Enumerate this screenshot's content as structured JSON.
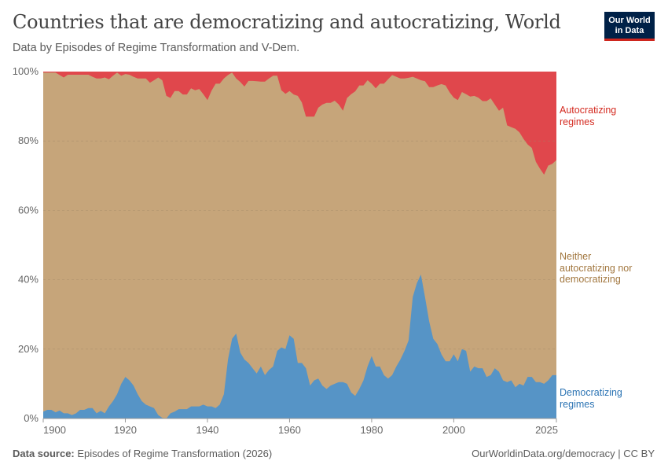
{
  "header": {
    "title": "Countries that are democratizing and autocratizing, World",
    "subtitle": "Data by Episodes of Regime Transformation and V-Dem."
  },
  "logo": {
    "line1": "Our World",
    "line2": "in Data"
  },
  "footer": {
    "source_label": "Data source:",
    "source": "Episodes of Regime Transformation (2026)",
    "link": "OurWorldinData.org/democracy | CC BY"
  },
  "colors": {
    "autocratizing": "#e0474c",
    "neither": "#c6a57a",
    "democratizing": "#5694c6",
    "autocratizing_label": "#d42b21",
    "neither_label": "#a2773f",
    "democratizing_label": "#2c74b4"
  },
  "chart_data": {
    "type": "area",
    "stacked": true,
    "title": "Countries that are democratizing and autocratizing, World",
    "ylim": [
      0,
      100
    ],
    "xlim": [
      1900,
      2025
    ],
    "grid": "horizontal dashed",
    "legend": "right, inline labels",
    "y_ticks": [
      "0%",
      "20%",
      "40%",
      "60%",
      "80%",
      "100%"
    ],
    "x_ticks": [
      "1900",
      "1920",
      "1940",
      "1960",
      "1980",
      "2000",
      "2025"
    ],
    "x_tick_values": [
      1900,
      1920,
      1940,
      1960,
      1980,
      2000,
      2025
    ],
    "years": [
      1900,
      1901,
      1902,
      1903,
      1904,
      1905,
      1906,
      1907,
      1908,
      1909,
      1910,
      1911,
      1912,
      1913,
      1914,
      1915,
      1916,
      1917,
      1918,
      1919,
      1920,
      1921,
      1922,
      1923,
      1924,
      1925,
      1926,
      1927,
      1928,
      1929,
      1930,
      1931,
      1932,
      1933,
      1934,
      1935,
      1936,
      1937,
      1938,
      1939,
      1940,
      1941,
      1942,
      1943,
      1944,
      1945,
      1946,
      1947,
      1948,
      1949,
      1950,
      1951,
      1952,
      1953,
      1954,
      1955,
      1956,
      1957,
      1958,
      1959,
      1960,
      1961,
      1962,
      1963,
      1964,
      1965,
      1966,
      1967,
      1968,
      1969,
      1970,
      1971,
      1972,
      1973,
      1974,
      1975,
      1976,
      1977,
      1978,
      1979,
      1980,
      1981,
      1982,
      1983,
      1984,
      1985,
      1986,
      1987,
      1988,
      1989,
      1990,
      1991,
      1992,
      1993,
      1994,
      1995,
      1996,
      1997,
      1998,
      1999,
      2000,
      2001,
      2002,
      2003,
      2004,
      2005,
      2006,
      2007,
      2008,
      2009,
      2010,
      2011,
      2012,
      2013,
      2014,
      2015,
      2016,
      2017,
      2018,
      2019,
      2020,
      2021,
      2022,
      2023,
      2024,
      2025
    ],
    "series": [
      {
        "name": "Democratizing regimes",
        "values": [
          2,
          2.5,
          2.5,
          1.8,
          2.3,
          1.5,
          1.5,
          1,
          1.5,
          2.5,
          2.5,
          3,
          3,
          1.5,
          2.2,
          1.5,
          3.5,
          5,
          7,
          10,
          12,
          11,
          9.5,
          7,
          5,
          4,
          3.5,
          3,
          1,
          0.2,
          0,
          1.5,
          2,
          2.7,
          2.7,
          2.7,
          3.5,
          3.5,
          3.5,
          4,
          3.5,
          3.5,
          3,
          4,
          7,
          17,
          23,
          24.5,
          19,
          17,
          16,
          14.5,
          13,
          15,
          12.5,
          14,
          15,
          19.5,
          20.5,
          20,
          24,
          23,
          16,
          16,
          14.5,
          9.5,
          11,
          11.5,
          9.5,
          8.5,
          9.5,
          10,
          10.5,
          10.5,
          10,
          7.5,
          6.5,
          8.5,
          11,
          15,
          18,
          15,
          15,
          12.5,
          11.5,
          12.5,
          15,
          17,
          19.5,
          22.5,
          35,
          39,
          41.5,
          35,
          28,
          23,
          21.5,
          18.5,
          16.5,
          16.5,
          18.5,
          16.5,
          20,
          19.5,
          13.5,
          15,
          14.5,
          14.5,
          12,
          12.5,
          14.5,
          13.5,
          11,
          10.5,
          11,
          9,
          10,
          9.5,
          12,
          12,
          10.5,
          10.5,
          10,
          11,
          12.5,
          12.5
        ]
      },
      {
        "name": "Neither autocratizing nor democratizing",
        "values": "remainder to 100%"
      },
      {
        "name": "Autocratizing regimes",
        "values": [
          0.3,
          0.3,
          0.3,
          0.3,
          1,
          1.7,
          0.9,
          0.9,
          0.9,
          0.9,
          0.9,
          0.9,
          1.5,
          2,
          2,
          1.7,
          2.2,
          1.2,
          0.3,
          1.2,
          0.7,
          0.9,
          1.5,
          2,
          2,
          2,
          3.2,
          2.5,
          1.7,
          2.5,
          7,
          7.6,
          5.6,
          5.6,
          6.6,
          6.6,
          4.8,
          5.4,
          5,
          6.5,
          8.2,
          5.5,
          3.5,
          3.5,
          2,
          1,
          0.3,
          2,
          3,
          4.3,
          2.7,
          2.7,
          2.8,
          2.9,
          2.9,
          2,
          1.2,
          1.2,
          5.4,
          6.4,
          5.6,
          6.6,
          7,
          8.9,
          13,
          13,
          13,
          10.4,
          9.5,
          9,
          9,
          8.4,
          9.5,
          11.3,
          7.6,
          6.5,
          5.7,
          4,
          4,
          2.5,
          3.5,
          4.8,
          3.5,
          3.5,
          2.2,
          1,
          1.5,
          2,
          2,
          1.8,
          1.5,
          2,
          2.5,
          2.8,
          4.5,
          4.5,
          4,
          3.6,
          4,
          6,
          7.5,
          8.2,
          5.9,
          6.5,
          7.2,
          7,
          7.5,
          8.5,
          8.5,
          7.7,
          9.5,
          11.3,
          10.4,
          15.5,
          16,
          16.5,
          17.5,
          19.4,
          21,
          22,
          26,
          28,
          29.7,
          27.1,
          26.6,
          25.5
        ]
      }
    ],
    "labels": {
      "autocratizing": [
        "Autocratizing",
        "regimes"
      ],
      "neither": [
        "Neither",
        "autocratizing nor",
        "democratizing"
      ],
      "democratizing": [
        "Democratizing",
        "regimes"
      ]
    }
  }
}
